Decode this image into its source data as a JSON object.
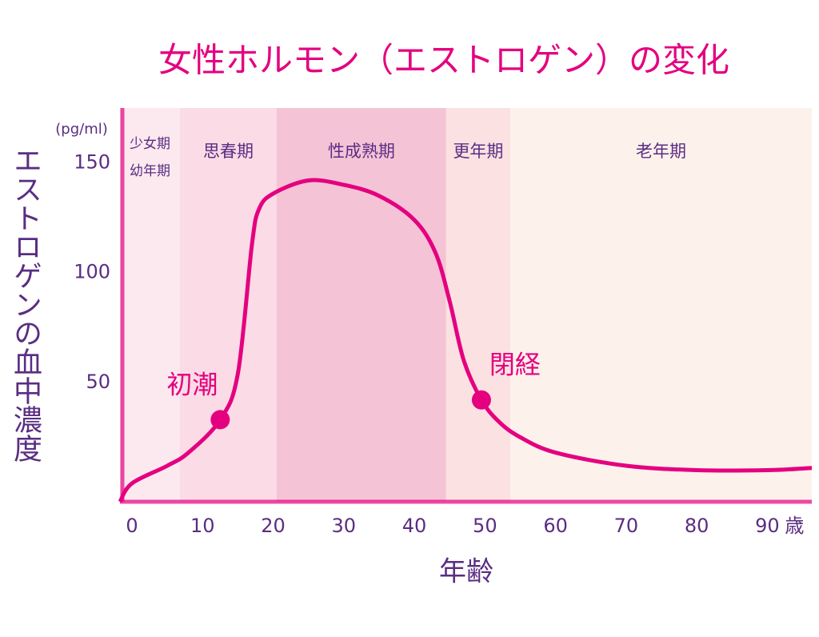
{
  "chart_data": {
    "type": "line",
    "title": "女性ホルモン（エストロゲン）の変化",
    "y_label": "エストロゲンの血中濃度",
    "y_unit": "(pg/ml)",
    "x_label": "年齢",
    "x_unit": "歳",
    "xlim": [
      -1.7,
      96.3
    ],
    "xticks": [
      0,
      10,
      20,
      30,
      40,
      50,
      60,
      70,
      80,
      90
    ],
    "ylim": [
      -4.4,
      175
    ],
    "yticks": [
      50,
      100,
      150
    ],
    "periods": [
      {
        "label": [
          "少女期",
          "幼年期"
        ],
        "start": -1.7,
        "end": 6.8,
        "color": "#fbe9ef"
      },
      {
        "label": [
          "思春期"
        ],
        "start": 6.8,
        "end": 20.5,
        "color": "#fbdbe5"
      },
      {
        "label": [
          "性成熟期"
        ],
        "start": 20.5,
        "end": 44.5,
        "color": "#f5c3d6"
      },
      {
        "label": [
          "更年期"
        ],
        "start": 44.5,
        "end": 53.6,
        "color": "#fbe1e1"
      },
      {
        "label": [
          "老年期"
        ],
        "start": 53.6,
        "end": 96.3,
        "color": "#fdf1ec"
      }
    ],
    "series": [
      {
        "color": "#e4007f",
        "x": [
          -1.7,
          0,
          5,
          8,
          12.5,
          15,
          17,
          18,
          20,
          25,
          30,
          35,
          40,
          43,
          45,
          47,
          49.5,
          52,
          55,
          60,
          70,
          80,
          90,
          96.3
        ],
        "values": [
          -4.4,
          4,
          12,
          18,
          33,
          54,
          113,
          129,
          136,
          142,
          140,
          135,
          124,
          109,
          87,
          60,
          42,
          32,
          25,
          18,
          12,
          10,
          10,
          11
        ]
      }
    ],
    "annotations": [
      {
        "text": "初潮",
        "x": 12.5,
        "y": 33
      },
      {
        "text": "閉経",
        "x": 49.5,
        "y": 42
      }
    ]
  }
}
